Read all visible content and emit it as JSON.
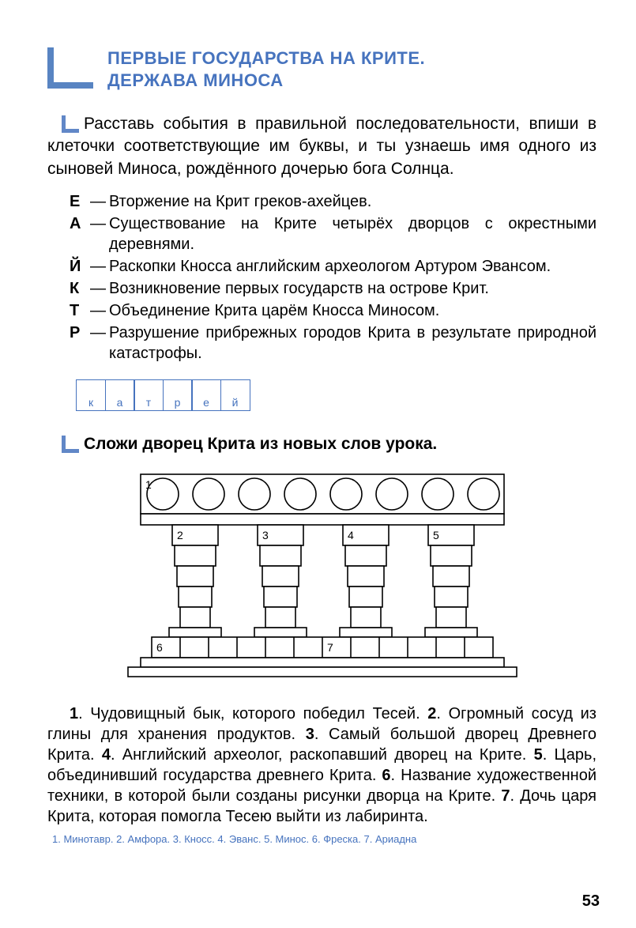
{
  "header": {
    "title_line1": "ПЕРВЫЕ ГОСУДАРСТВА НА КРИТЕ.",
    "title_line2": "ДЕРЖАВА МИНОСА",
    "marker_color": "#3b6fb8"
  },
  "task1": {
    "intro": "Расставь события в правильной последовательности, впиши в клеточки соответствующие им буквы, и ты узнаешь имя одного из сыновей Миноса, рождённого дочерью бога Солнца.",
    "items": [
      {
        "letter": "Е",
        "text": "Вторжение на Крит греков-ахейцев."
      },
      {
        "letter": "А",
        "text": "Существование на Крите четырёх дворцов с окрест­ными деревнями."
      },
      {
        "letter": "Й",
        "text": "Раскопки Кносса английским археологом Артуром Эвансом."
      },
      {
        "letter": "К",
        "text": "Возникновение первых государств на острове Крит."
      },
      {
        "letter": "Т",
        "text": "Объединение Крита царём Кносса Миносом."
      },
      {
        "letter": "Р",
        "text": "Разрушение прибрежных городов Крита в результате природной катастрофы."
      }
    ],
    "answer_cells": [
      "к",
      "а",
      "т",
      "р",
      "е",
      "й"
    ],
    "cell_border_color": "#4673be"
  },
  "task2": {
    "title": "Сложи дворец Крита из новых слов урока.",
    "palace": {
      "stroke": "#000000",
      "fill": "#ffffff",
      "labels": [
        "1",
        "2",
        "3",
        "4",
        "5",
        "6",
        "7"
      ],
      "circle_count": 8,
      "column_count": 4
    },
    "clues_html": "<b>1</b>. Чудовищный бык, которого победил Тесей. <b>2</b>. Огромный сосуд из глины для хранения продуктов. <b>3</b>. Самый большой дворец Древнего Крита. <b>4</b>. Английский археолог, раскопавший дворец на Крите. <b>5</b>. Царь, объединивший государства древ­него Крита. <b>6</b>. Название художественной техники, в которой были созданы рисунки дворца на Крите. <b>7</b>. Дочь царя Крита, которая помогла Тесею выйти из лабиринта.",
    "answers_line": "1. Минотавр. 2. Амфора. 3. Кносс. 4. Эванс. 5. Минос. 6. Фреска. 7. Ариадна"
  },
  "page_number": "53"
}
